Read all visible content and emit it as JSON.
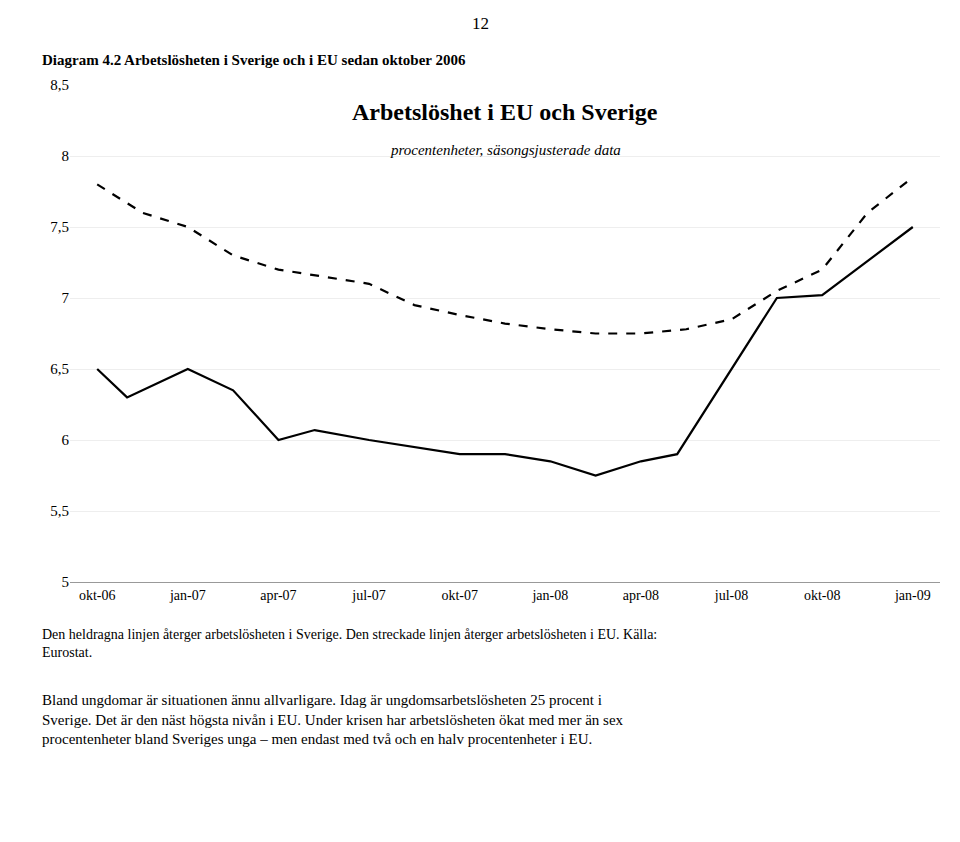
{
  "chart_data": {
    "type": "line",
    "title": "Arbetslöshet i EU och Sverige",
    "subtitle": "procentenheter, säsongsjusterade data",
    "annotations": [
      "12",
      "Diagram 4.2 Arbetslösheten i Sverige och i EU sedan oktober 2006",
      "Den heldragna linjen återger arbetslösheten i Sverige. Den streckade linjen återger arbetslösheten i EU. Källa:\nEurostat.",
      "Bland ungdomar är situationen ännu allvarligare. Idag är ungdomsarbetslösheten 25 procent i\nSverige. Det är den näst högsta nivån i EU. Under krisen har arbetslösheten ökat med mer än sex\nprocentenheter bland Sveriges unga – men endast med två och en halv procentenheter i EU."
    ],
    "xlim": [
      -0.3,
      9.3
    ],
    "xticks": [
      {
        "value": 0,
        "label": "okt-06"
      },
      {
        "value": 1,
        "label": "jan-07"
      },
      {
        "value": 2,
        "label": "apr-07"
      },
      {
        "value": 3,
        "label": "jul-07"
      },
      {
        "value": 4,
        "label": "okt-07"
      },
      {
        "value": 5,
        "label": "jan-08"
      },
      {
        "value": 6,
        "label": "apr-08"
      },
      {
        "value": 7,
        "label": "jul-08"
      },
      {
        "value": 8,
        "label": "okt-08"
      },
      {
        "value": 9,
        "label": "jan-09"
      }
    ],
    "ylim": [
      5.0,
      8.5
    ],
    "yticks": [
      5,
      {
        "value": 5.5,
        "label": "5,5"
      },
      6,
      {
        "value": 6.5,
        "label": "6,5"
      },
      7,
      {
        "value": 7.5,
        "label": "7,5"
      },
      8,
      {
        "value": 8.5,
        "label": "8,5"
      }
    ],
    "grid": true,
    "series": [
      {
        "color": "#000000",
        "line_style": "dashed",
        "x": [
          0,
          0.5,
          1.0,
          1.5,
          2.0,
          2.5,
          3.0,
          3.5,
          4.0,
          4.5,
          5.0,
          5.5,
          6.0,
          6.5,
          7.0,
          7.5,
          8.0,
          8.5,
          9.0
        ],
        "values": [
          7.8,
          7.6,
          7.5,
          7.3,
          7.2,
          7.15,
          7.1,
          6.95,
          6.88,
          6.82,
          6.78,
          6.75,
          6.75,
          6.78,
          6.85,
          7.05,
          7.2,
          7.6,
          7.85
        ]
      },
      {
        "color": "#000000",
        "line_style": "solid",
        "x": [
          0,
          0.33,
          1.0,
          1.5,
          2.0,
          2.4,
          3.0,
          3.5,
          4.0,
          4.5,
          5.0,
          5.5,
          6.0,
          6.4,
          7.5,
          8.0,
          9.0
        ],
        "values": [
          6.5,
          6.3,
          6.5,
          6.35,
          6.0,
          6.07,
          6.0,
          5.95,
          5.9,
          5.9,
          5.85,
          5.75,
          5.85,
          5.9,
          7.0,
          7.02,
          7.5
        ]
      }
    ]
  }
}
